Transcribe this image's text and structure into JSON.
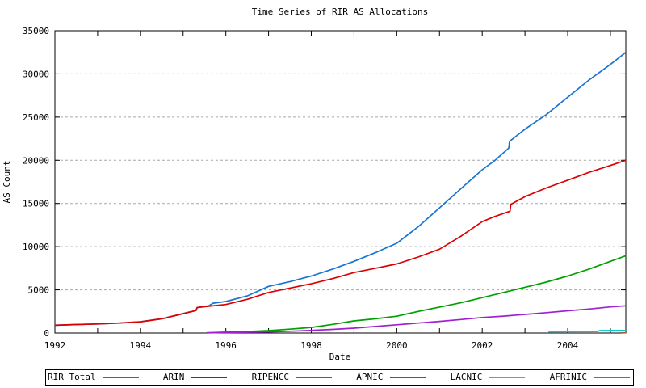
{
  "chart_data": {
    "type": "line",
    "title": "Time Series of RIR AS Allocations",
    "xlabel": "Date",
    "ylabel": "AS Count",
    "xlim": [
      1992,
      2005.36
    ],
    "ylim": [
      0,
      35000
    ],
    "xticks_labeled": [
      1992,
      1994,
      1996,
      1998,
      2000,
      2002,
      2004
    ],
    "xticks_minor": [
      1993,
      1995,
      1997,
      1999,
      2001,
      2003,
      2005
    ],
    "yticks": [
      0,
      5000,
      10000,
      15000,
      20000,
      25000,
      30000,
      35000
    ],
    "grid": "horizontal-dashed",
    "legend_position": "bottom",
    "colors": {
      "grid": "#a8a8a8",
      "axis": "#000000",
      "background": "#ffffff"
    },
    "series": [
      {
        "name": "RIR Total",
        "color": "#1874d2",
        "points": [
          [
            1992.0,
            900
          ],
          [
            1992.5,
            980
          ],
          [
            1993.0,
            1050
          ],
          [
            1993.5,
            1150
          ],
          [
            1994.0,
            1300
          ],
          [
            1994.5,
            1650
          ],
          [
            1995.0,
            2250
          ],
          [
            1995.3,
            2600
          ],
          [
            1995.33,
            2950
          ],
          [
            1995.6,
            3150
          ],
          [
            1995.7,
            3450
          ],
          [
            1996.0,
            3650
          ],
          [
            1996.5,
            4300
          ],
          [
            1997.0,
            5400
          ],
          [
            1997.5,
            5950
          ],
          [
            1998.0,
            6600
          ],
          [
            1998.5,
            7400
          ],
          [
            1999.0,
            8300
          ],
          [
            1999.5,
            9300
          ],
          [
            2000.0,
            10400
          ],
          [
            2000.5,
            12300
          ],
          [
            2001.0,
            14500
          ],
          [
            2001.5,
            16700
          ],
          [
            2002.0,
            18900
          ],
          [
            2002.3,
            20000
          ],
          [
            2002.62,
            21400
          ],
          [
            2002.64,
            22200
          ],
          [
            2003.0,
            23600
          ],
          [
            2003.5,
            25300
          ],
          [
            2004.0,
            27300
          ],
          [
            2004.5,
            29300
          ],
          [
            2005.0,
            31100
          ],
          [
            2005.36,
            32500
          ]
        ]
      },
      {
        "name": "ARIN",
        "color": "#dd0000",
        "points": [
          [
            1992.0,
            900
          ],
          [
            1992.5,
            980
          ],
          [
            1993.0,
            1050
          ],
          [
            1993.5,
            1150
          ],
          [
            1994.0,
            1300
          ],
          [
            1994.5,
            1650
          ],
          [
            1995.0,
            2250
          ],
          [
            1995.3,
            2600
          ],
          [
            1995.33,
            2950
          ],
          [
            1995.6,
            3100
          ],
          [
            1996.0,
            3300
          ],
          [
            1996.5,
            3900
          ],
          [
            1997.0,
            4700
          ],
          [
            1997.5,
            5200
          ],
          [
            1998.0,
            5700
          ],
          [
            1998.5,
            6300
          ],
          [
            1999.0,
            7000
          ],
          [
            1999.5,
            7500
          ],
          [
            2000.0,
            8000
          ],
          [
            2000.5,
            8800
          ],
          [
            2001.0,
            9700
          ],
          [
            2001.5,
            11200
          ],
          [
            2002.0,
            12900
          ],
          [
            2002.3,
            13500
          ],
          [
            2002.65,
            14100
          ],
          [
            2002.67,
            14900
          ],
          [
            2003.0,
            15800
          ],
          [
            2003.5,
            16800
          ],
          [
            2004.0,
            17700
          ],
          [
            2004.5,
            18600
          ],
          [
            2005.0,
            19400
          ],
          [
            2005.36,
            20000
          ]
        ]
      },
      {
        "name": "RIPENCC",
        "color": "#00a000",
        "points": [
          [
            1995.55,
            30
          ],
          [
            1996.0,
            100
          ],
          [
            1996.5,
            180
          ],
          [
            1997.0,
            280
          ],
          [
            1997.5,
            450
          ],
          [
            1998.0,
            650
          ],
          [
            1998.5,
            1000
          ],
          [
            1999.0,
            1400
          ],
          [
            1999.5,
            1650
          ],
          [
            2000.0,
            1950
          ],
          [
            2000.5,
            2500
          ],
          [
            2001.0,
            3000
          ],
          [
            2001.5,
            3500
          ],
          [
            2002.0,
            4100
          ],
          [
            2002.5,
            4700
          ],
          [
            2003.0,
            5300
          ],
          [
            2003.5,
            5900
          ],
          [
            2004.0,
            6600
          ],
          [
            2004.5,
            7400
          ],
          [
            2005.0,
            8300
          ],
          [
            2005.36,
            8950
          ]
        ]
      },
      {
        "name": "APNIC",
        "color": "#a020d0",
        "points": [
          [
            1995.55,
            20
          ],
          [
            1996.0,
            60
          ],
          [
            1996.5,
            90
          ],
          [
            1997.0,
            130
          ],
          [
            1997.5,
            210
          ],
          [
            1998.0,
            310
          ],
          [
            1998.5,
            420
          ],
          [
            1999.0,
            560
          ],
          [
            1999.5,
            760
          ],
          [
            2000.0,
            950
          ],
          [
            2000.5,
            1150
          ],
          [
            2001.0,
            1350
          ],
          [
            2001.5,
            1560
          ],
          [
            2002.0,
            1800
          ],
          [
            2002.5,
            1960
          ],
          [
            2003.0,
            2150
          ],
          [
            2003.5,
            2360
          ],
          [
            2004.0,
            2570
          ],
          [
            2004.5,
            2780
          ],
          [
            2005.0,
            3020
          ],
          [
            2005.36,
            3150
          ]
        ]
      },
      {
        "name": "LACNIC",
        "color": "#00cdcd",
        "points": [
          [
            2003.55,
            150
          ],
          [
            2004.0,
            160
          ],
          [
            2004.7,
            170
          ],
          [
            2004.75,
            280
          ],
          [
            2005.36,
            300
          ]
        ]
      },
      {
        "name": "AFRINIC",
        "color": "#c05a0a",
        "points": [
          [
            2005.25,
            10
          ],
          [
            2005.36,
            30
          ]
        ]
      }
    ]
  }
}
